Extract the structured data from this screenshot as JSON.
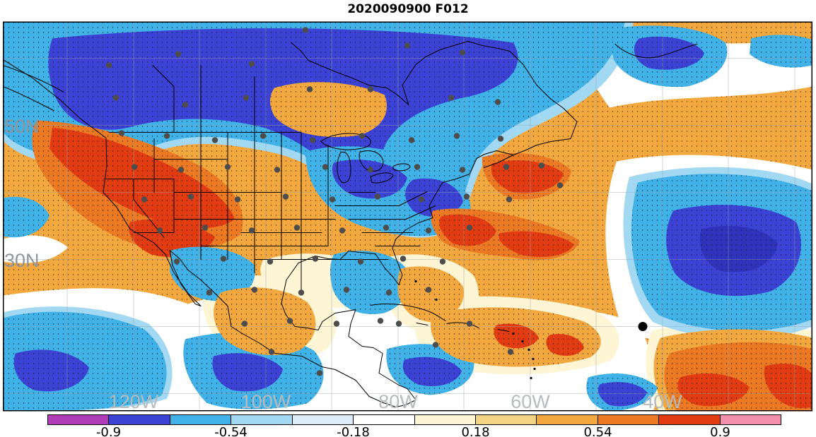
{
  "title": "2020090900 F012",
  "map": {
    "lat_labels": [
      "50N",
      "30N"
    ],
    "lon_labels": [
      "120W",
      "100W",
      "80W",
      "60W",
      "40W"
    ]
  },
  "colorbar": {
    "ticks": [
      "-0.9",
      "-0.54",
      "-0.18",
      "0.18",
      "0.54",
      "0.9"
    ],
    "colors": [
      "#b13cb8",
      "#3c42d4",
      "#41b2e8",
      "#a2d8f2",
      "#dcedf8",
      "#ffffff",
      "#fdf5d4",
      "#f3d484",
      "#f2a83e",
      "#ec7a22",
      "#e23c12",
      "#f490ae"
    ]
  },
  "chart_data": {
    "type": "heatmap",
    "title": "2020090900 F012",
    "geography": "North America with surrounding Pacific and Atlantic oceans, Mexico, Central America and the Caribbean",
    "x_tick_labels": [
      "120W",
      "100W",
      "80W",
      "60W",
      "40W"
    ],
    "y_tick_labels": [
      "50N",
      "30N"
    ],
    "colorbar_tick_values": [
      -0.9,
      -0.54,
      -0.18,
      0.18,
      0.54,
      0.9
    ],
    "colorbar_range": [
      -1.08,
      1.08
    ],
    "colorbar_levels": 12,
    "colorbar_colors": [
      "#b13cb8",
      "#3c42d4",
      "#41b2e8",
      "#a2d8f2",
      "#dcedf8",
      "#ffffff",
      "#fdf5d4",
      "#f3d484",
      "#f2a83e",
      "#ec7a22",
      "#e23c12",
      "#f490ae"
    ],
    "overlays": [
      "wind barbs scattered over the whole domain",
      "gray station dots across the United States, southern Canada, Mexico and the Caribbean",
      "one large black dot in the western subtropical Atlantic",
      "coastlines, US state borders and Canadian provincial borders",
      "black dot stippling over shaded positive and negative regions",
      "light gray latitude-longitude graticule"
    ],
    "field_regions": [
      {
        "region": "band across southern Canada from the Pacific Northwest to Quebec",
        "value_range": "-0.54 to -0.9"
      },
      {
        "region": "Great Lakes and Ohio Valley",
        "value_range": "-0.18 to -0.9"
      },
      {
        "region": "western US coast and Great Basin",
        "value_range": "0.54 to 0.9"
      },
      {
        "region": "most of the continental US and subtropical Atlantic",
        "value_range": "0.18 to 0.54"
      },
      {
        "region": "mid-Atlantic offshore streaks and New England coast",
        "value_range": "0.54 to 0.9"
      },
      {
        "region": "central North Atlantic near 33N 40W",
        "value_range": "-0.54 to -0.9"
      },
      {
        "region": "eastern tropical Pacific, Gulf of Mexico and western Caribbean patches",
        "value_range": "-0.18 to -0.9"
      },
      {
        "region": "Caribbean and tropical Atlantic band",
        "value_range": "0.18 to 0.9"
      },
      {
        "region": "lower-right tropical Atlantic corner",
        "value_range": "0.54 to 0.9"
      }
    ],
    "legend_position": "bottom"
  }
}
